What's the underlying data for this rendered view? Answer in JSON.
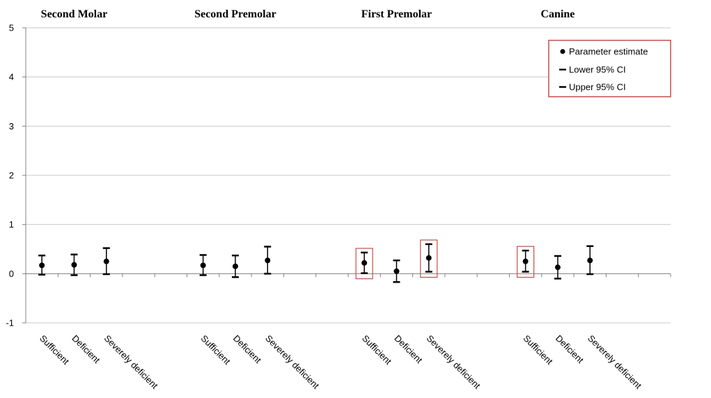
{
  "chart_data": {
    "type": "scatter",
    "groups": [
      "Second Molar",
      "Second Premolar",
      "First Premolar",
      "Canine"
    ],
    "categories": [
      "Sufficient",
      "Deficient",
      "Severely deficient"
    ],
    "ylim": [
      -1,
      5
    ],
    "yticks": [
      -1,
      0,
      1,
      2,
      3,
      4,
      5
    ],
    "grid": true,
    "legend_position": "top-right",
    "legend": [
      "Parameter estimate",
      "Lower 95% CI",
      "Upper 95% CI"
    ],
    "series": [
      {
        "name": "Parameter estimate",
        "values": [
          [
            0.17,
            0.18,
            0.25
          ],
          [
            0.17,
            0.15,
            0.27
          ],
          [
            0.22,
            0.05,
            0.32
          ],
          [
            0.25,
            0.13,
            0.27
          ]
        ]
      },
      {
        "name": "Lower 95% CI",
        "values": [
          [
            -0.02,
            -0.03,
            -0.01
          ],
          [
            -0.03,
            -0.07,
            0.0
          ],
          [
            0.01,
            -0.17,
            0.04
          ],
          [
            0.04,
            -0.1,
            -0.01
          ]
        ]
      },
      {
        "name": "Upper 95% CI",
        "values": [
          [
            0.37,
            0.39,
            0.52
          ],
          [
            0.38,
            0.37,
            0.55
          ],
          [
            0.43,
            0.27,
            0.6
          ],
          [
            0.47,
            0.36,
            0.56
          ]
        ]
      }
    ],
    "highlighted": [
      [
        2,
        0
      ],
      [
        2,
        2
      ],
      [
        3,
        0
      ]
    ],
    "colors": {
      "axis": "#808080",
      "grid": "#c8c8c8",
      "marker": "#000000",
      "highlight": "#c0504d"
    }
  }
}
